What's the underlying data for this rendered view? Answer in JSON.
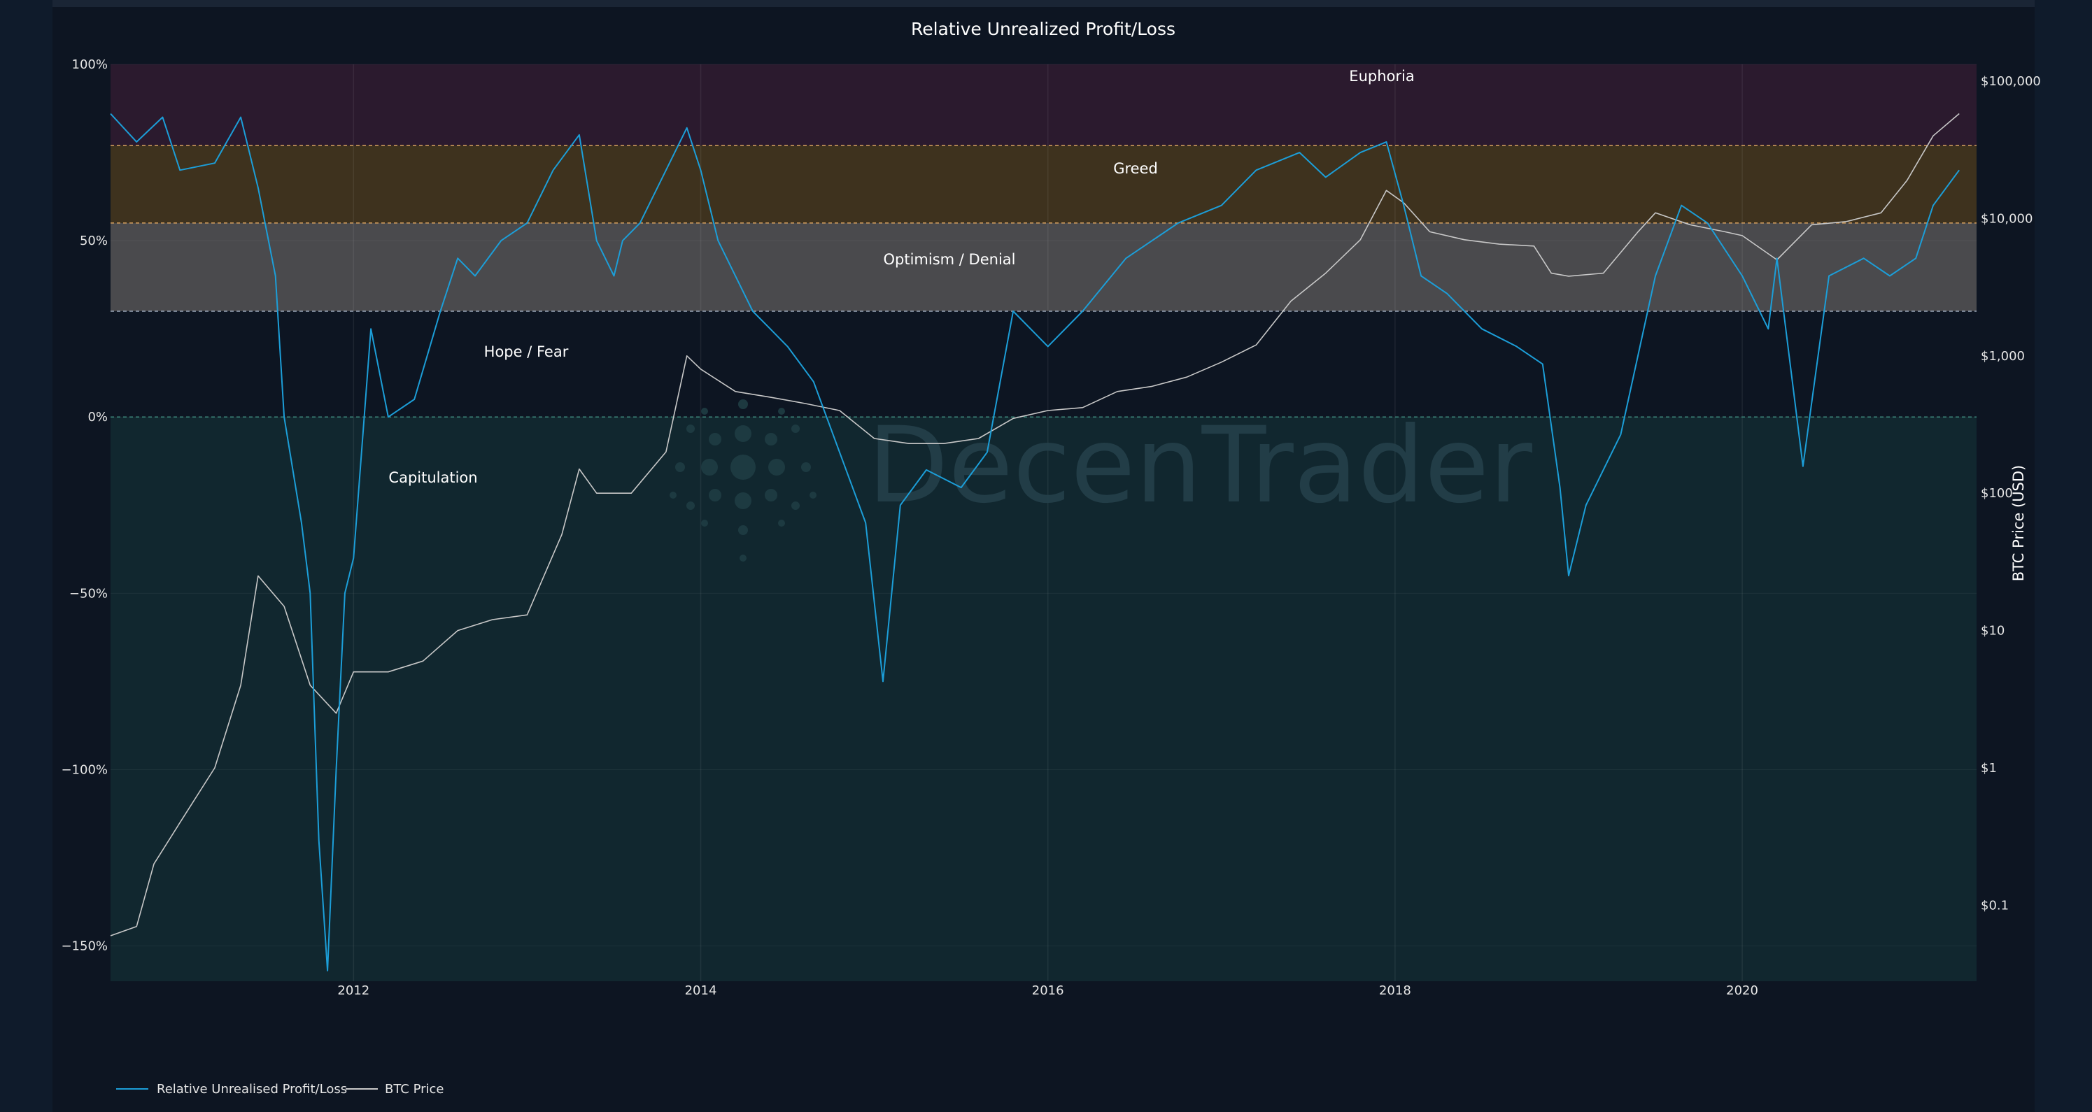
{
  "chart_data": {
    "type": "line",
    "title": "Relative Unrealized Profit/Loss",
    "y_left": {
      "range": [
        -160,
        100
      ],
      "ticks": [
        100,
        50,
        0,
        -50,
        -100,
        -150
      ],
      "tick_labels": [
        "100%",
        "50%",
        "0%",
        "−50%",
        "−100%",
        "−150%"
      ]
    },
    "y_right": {
      "label": "BTC Price (USD)",
      "scale": "log",
      "ticks": [
        100000,
        10000,
        1000,
        100,
        10,
        1,
        0.1
      ],
      "tick_labels": [
        "$100,000",
        "$10,000",
        "$1,000",
        "$100",
        "$10",
        "$1",
        "$0.1"
      ]
    },
    "x": {
      "range": [
        2010.6,
        2021.35
      ],
      "ticks": [
        2012,
        2014,
        2016,
        2018,
        2020
      ],
      "tick_labels": [
        "2012",
        "2014",
        "2016",
        "2018",
        "2020"
      ]
    },
    "grid": true,
    "zones": [
      {
        "label": "Euphoria",
        "from": 77,
        "to": 100,
        "color": "#2b1a2e"
      },
      {
        "label": "Greed",
        "from": 55,
        "to": 77,
        "color": "#3e321e"
      },
      {
        "label": "Optimism / Denial",
        "from": 30,
        "to": 55,
        "color": "#4a4a4d"
      },
      {
        "label": "Hope / Fear",
        "from": 0,
        "to": 30,
        "color": "#0d1522"
      },
      {
        "label": "Capitulation",
        "from": -160,
        "to": 0,
        "color": "#11272f"
      }
    ],
    "series": [
      {
        "name": "Relative Unrealised Profit/Loss",
        "color": "#1c9ed8",
        "x": [
          2010.6,
          2010.75,
          2010.9,
          2011.0,
          2011.2,
          2011.35,
          2011.45,
          2011.55,
          2011.6,
          2011.7,
          2011.75,
          2011.8,
          2011.85,
          2011.9,
          2011.95,
          2012.0,
          2012.1,
          2012.2,
          2012.35,
          2012.5,
          2012.6,
          2012.7,
          2012.85,
          2013.0,
          2013.15,
          2013.3,
          2013.4,
          2013.5,
          2013.55,
          2013.65,
          2013.8,
          2013.92,
          2014.0,
          2014.1,
          2014.3,
          2014.4,
          2014.5,
          2014.65,
          2014.8,
          2014.95,
          2015.05,
          2015.15,
          2015.3,
          2015.5,
          2015.65,
          2015.8,
          2015.9,
          2016.0,
          2016.2,
          2016.45,
          2016.6,
          2016.75,
          2017.0,
          2017.2,
          2017.45,
          2017.6,
          2017.8,
          2017.95,
          2018.05,
          2018.15,
          2018.3,
          2018.5,
          2018.7,
          2018.85,
          2018.95,
          2019.0,
          2019.1,
          2019.3,
          2019.5,
          2019.65,
          2019.8,
          2020.0,
          2020.15,
          2020.2,
          2020.35,
          2020.5,
          2020.7,
          2020.85,
          2021.0,
          2021.1,
          2021.25
        ],
        "values": [
          86,
          78,
          85,
          70,
          72,
          85,
          65,
          40,
          0,
          -30,
          -50,
          -120,
          -157,
          -100,
          -50,
          -40,
          25,
          0,
          5,
          30,
          45,
          40,
          50,
          55,
          70,
          80,
          50,
          40,
          50,
          55,
          70,
          82,
          70,
          50,
          30,
          25,
          20,
          10,
          -10,
          -30,
          -75,
          -25,
          -15,
          -20,
          -10,
          30,
          25,
          20,
          30,
          45,
          50,
          55,
          60,
          70,
          75,
          68,
          75,
          78,
          60,
          40,
          35,
          25,
          20,
          15,
          -20,
          -45,
          -25,
          -5,
          40,
          60,
          55,
          40,
          25,
          45,
          -14,
          40,
          45,
          40,
          45,
          60,
          70
        ]
      },
      {
        "name": "BTC Price",
        "color": "#c8c8c8",
        "x": [
          2010.6,
          2010.75,
          2010.85,
          2011.0,
          2011.2,
          2011.35,
          2011.45,
          2011.6,
          2011.75,
          2011.9,
          2012.0,
          2012.2,
          2012.4,
          2012.6,
          2012.8,
          2013.0,
          2013.2,
          2013.3,
          2013.4,
          2013.6,
          2013.8,
          2013.92,
          2014.0,
          2014.2,
          2014.4,
          2014.6,
          2014.8,
          2015.0,
          2015.2,
          2015.4,
          2015.6,
          2015.8,
          2016.0,
          2016.2,
          2016.4,
          2016.6,
          2016.8,
          2017.0,
          2017.2,
          2017.4,
          2017.6,
          2017.8,
          2017.95,
          2018.05,
          2018.2,
          2018.4,
          2018.6,
          2018.8,
          2018.9,
          2019.0,
          2019.2,
          2019.4,
          2019.5,
          2019.7,
          2019.9,
          2020.0,
          2020.2,
          2020.4,
          2020.6,
          2020.8,
          2020.95,
          2021.1,
          2021.25
        ],
        "values": [
          0.06,
          0.07,
          0.2,
          0.4,
          1,
          4,
          25,
          15,
          4,
          2.5,
          5,
          5,
          6,
          10,
          12,
          13,
          50,
          150,
          100,
          100,
          200,
          1000,
          800,
          550,
          500,
          450,
          400,
          250,
          230,
          230,
          250,
          350,
          400,
          420,
          550,
          600,
          700,
          900,
          1200,
          2500,
          4000,
          7000,
          16000,
          13000,
          8000,
          7000,
          6500,
          6300,
          4000,
          3800,
          4000,
          8000,
          11000,
          9000,
          8000,
          7500,
          5000,
          9000,
          9500,
          11000,
          19000,
          40000,
          58000
        ]
      }
    ],
    "legend": {
      "position": "bottom-left",
      "entries": [
        "Relative Unrealised Profit/Loss",
        "BTC Price"
      ]
    },
    "watermark": "DecenTrader"
  }
}
